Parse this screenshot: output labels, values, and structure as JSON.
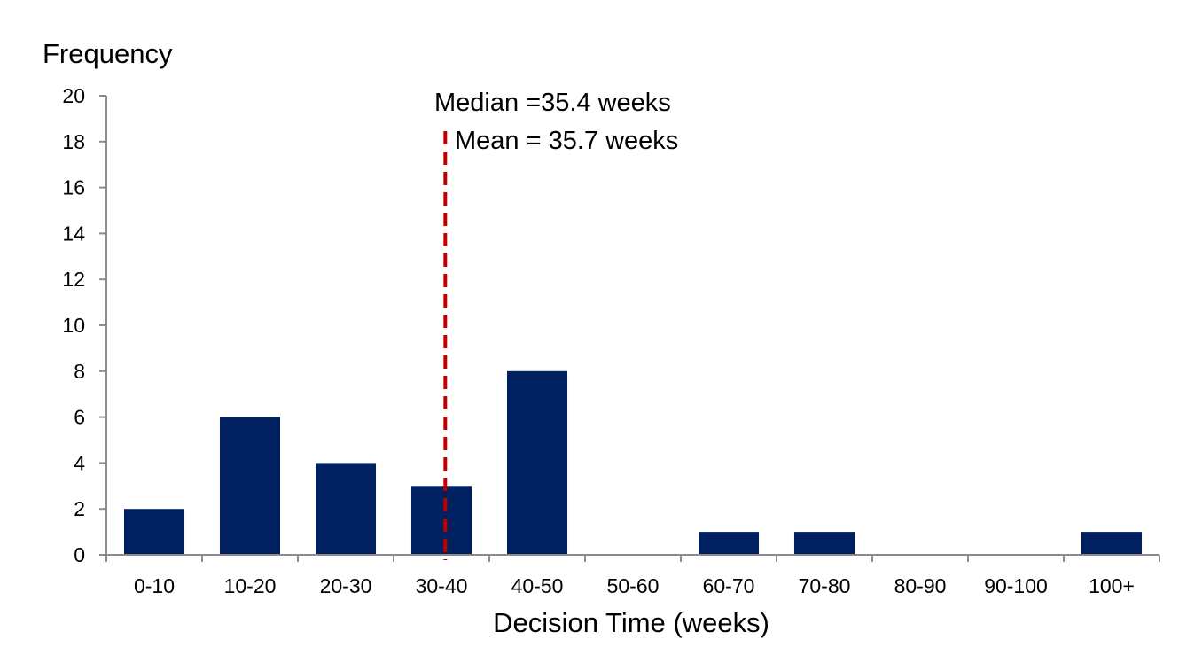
{
  "chart_data": {
    "type": "bar",
    "title": "",
    "xlabel": "Decision Time (weeks)",
    "ylabel": "Frequency",
    "categories": [
      "0-10",
      "10-20",
      "20-30",
      "30-40",
      "40-50",
      "50-60",
      "60-70",
      "70-80",
      "80-90",
      "90-100",
      "100+"
    ],
    "values": [
      2,
      6,
      4,
      3,
      8,
      0,
      1,
      1,
      0,
      0,
      1
    ],
    "ylim": [
      0,
      20
    ],
    "yticks": [
      0,
      2,
      4,
      6,
      8,
      10,
      12,
      14,
      16,
      18,
      20
    ],
    "grid": false,
    "legend": "none",
    "bar_color": "#002060",
    "reference_line": {
      "x": 35.4,
      "style": "dashed",
      "color": "#C00000"
    },
    "annotations": [
      "Median =35.4 weeks",
      "Mean = 35.7 weeks"
    ]
  }
}
